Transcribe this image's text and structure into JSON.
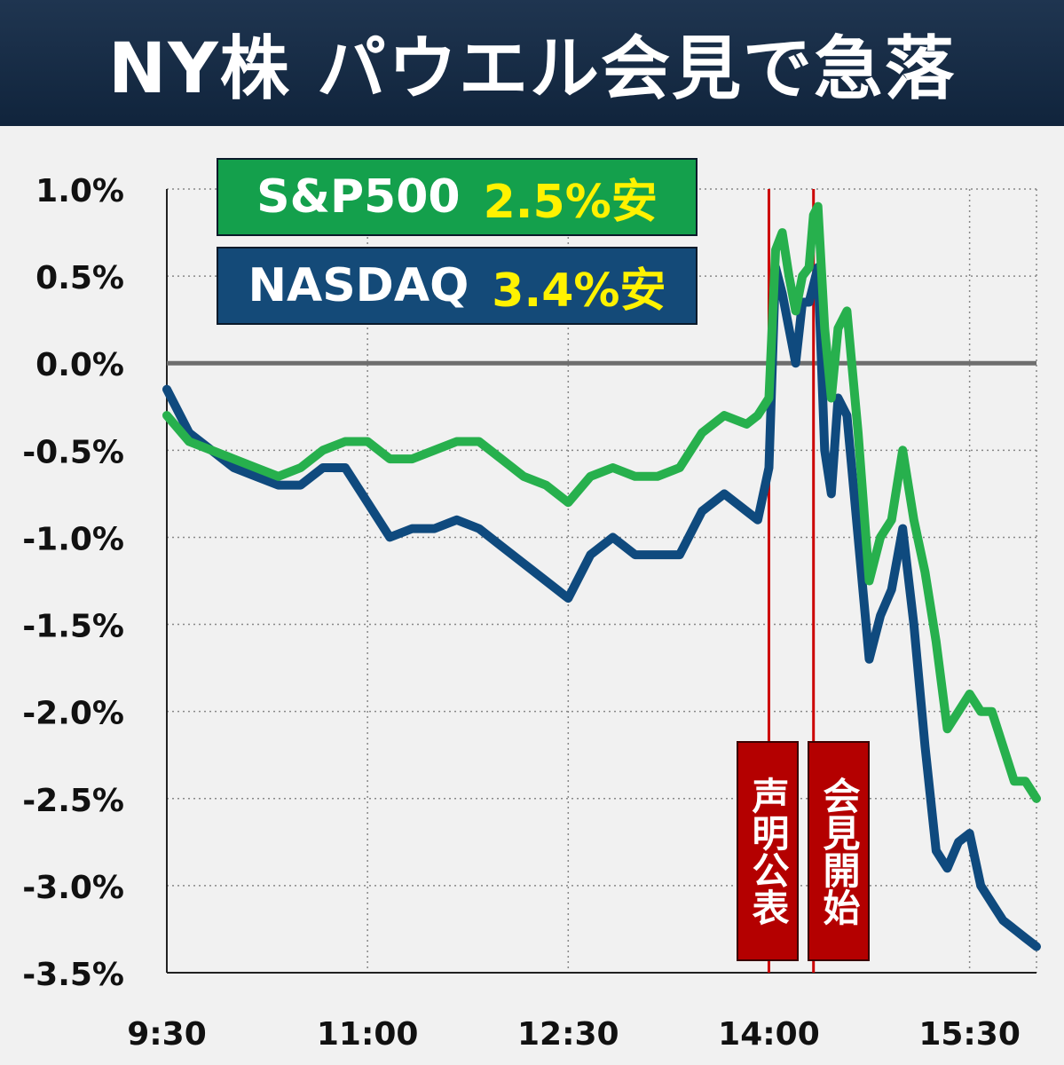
{
  "title": "NY株 パウエル会見で急落",
  "legend": [
    {
      "name": "S&P500",
      "change": "2.5%安",
      "color": "#14a04c"
    },
    {
      "name": "NASDAQ",
      "change": "3.4%安",
      "color": "#144a78"
    }
  ],
  "events": [
    {
      "label": "声明公表",
      "time": "14:00"
    },
    {
      "label": "会見開始",
      "time": "14:20"
    }
  ],
  "colors": {
    "sp500": "#27b04d",
    "nasdaq": "#0f4a7e",
    "event_line": "#cc0000",
    "zero_line": "#6e6e6e",
    "header": "#1a2d45"
  },
  "chart_data": {
    "type": "line",
    "x_ticks": [
      "9:30",
      "11:00",
      "12:30",
      "14:00",
      "15:30"
    ],
    "y_ticks": [
      "1.0%",
      "0.5%",
      "0.0%",
      "-0.5%",
      "-1.0%",
      "-1.5%",
      "-2.0%",
      "-2.5%",
      "-3.0%",
      "-3.5%"
    ],
    "ylim": [
      -3.5,
      1.0
    ],
    "xlim": [
      "9:30",
      "16:00"
    ],
    "grid": true,
    "series": [
      {
        "name": "S&P500",
        "x": [
          "9:30",
          "9:40",
          "9:50",
          "10:00",
          "10:10",
          "10:20",
          "10:30",
          "10:40",
          "10:50",
          "11:00",
          "11:10",
          "11:20",
          "11:30",
          "11:40",
          "11:50",
          "12:00",
          "12:10",
          "12:20",
          "12:30",
          "12:40",
          "12:50",
          "13:00",
          "13:10",
          "13:20",
          "13:30",
          "13:40",
          "13:50",
          "13:55",
          "14:00",
          "14:03",
          "14:06",
          "14:09",
          "14:12",
          "14:15",
          "14:18",
          "14:20",
          "14:22",
          "14:25",
          "14:28",
          "14:31",
          "14:35",
          "14:40",
          "14:45",
          "14:50",
          "14:55",
          "15:00",
          "15:05",
          "15:10",
          "15:15",
          "15:20",
          "15:25",
          "15:30",
          "15:35",
          "15:40",
          "15:45",
          "15:50",
          "15:55",
          "16:00"
        ],
        "y": [
          -0.3,
          -0.45,
          -0.5,
          -0.55,
          -0.6,
          -0.65,
          -0.6,
          -0.5,
          -0.45,
          -0.45,
          -0.55,
          -0.55,
          -0.5,
          -0.45,
          -0.45,
          -0.55,
          -0.65,
          -0.7,
          -0.8,
          -0.65,
          -0.6,
          -0.65,
          -0.65,
          -0.6,
          -0.4,
          -0.3,
          -0.35,
          -0.3,
          -0.2,
          0.65,
          0.75,
          0.5,
          0.3,
          0.5,
          0.55,
          0.85,
          0.9,
          0.2,
          -0.2,
          0.2,
          0.3,
          -0.4,
          -1.25,
          -1.0,
          -0.9,
          -0.5,
          -0.9,
          -1.2,
          -1.6,
          -2.1,
          -2.0,
          -1.9,
          -2.0,
          -2.0,
          -2.2,
          -2.4,
          -2.4,
          -2.5
        ]
      },
      {
        "name": "NASDAQ",
        "x": [
          "9:30",
          "9:40",
          "9:50",
          "10:00",
          "10:10",
          "10:20",
          "10:30",
          "10:40",
          "10:50",
          "11:00",
          "11:10",
          "11:20",
          "11:30",
          "11:40",
          "11:50",
          "12:00",
          "12:10",
          "12:20",
          "12:30",
          "12:40",
          "12:50",
          "13:00",
          "13:10",
          "13:20",
          "13:30",
          "13:40",
          "13:50",
          "13:55",
          "14:00",
          "14:03",
          "14:06",
          "14:09",
          "14:12",
          "14:15",
          "14:18",
          "14:20",
          "14:22",
          "14:25",
          "14:28",
          "14:31",
          "14:35",
          "14:40",
          "14:45",
          "14:50",
          "14:55",
          "15:00",
          "15:05",
          "15:10",
          "15:15",
          "15:20",
          "15:25",
          "15:30",
          "15:35",
          "15:40",
          "15:45",
          "15:50",
          "15:55",
          "16:00"
        ],
        "y": [
          -0.15,
          -0.4,
          -0.5,
          -0.6,
          -0.65,
          -0.7,
          -0.7,
          -0.6,
          -0.6,
          -0.8,
          -1.0,
          -0.95,
          -0.95,
          -0.9,
          -0.95,
          -1.05,
          -1.15,
          -1.25,
          -1.35,
          -1.1,
          -1.0,
          -1.1,
          -1.1,
          -1.1,
          -0.85,
          -0.75,
          -0.85,
          -0.9,
          -0.6,
          0.55,
          0.4,
          0.2,
          0.0,
          0.35,
          0.35,
          0.45,
          0.55,
          -0.5,
          -0.75,
          -0.2,
          -0.3,
          -1.0,
          -1.7,
          -1.45,
          -1.3,
          -0.95,
          -1.5,
          -2.2,
          -2.8,
          -2.9,
          -2.75,
          -2.7,
          -3.0,
          -3.1,
          -3.2,
          -3.25,
          -3.3,
          -3.35
        ]
      }
    ]
  }
}
